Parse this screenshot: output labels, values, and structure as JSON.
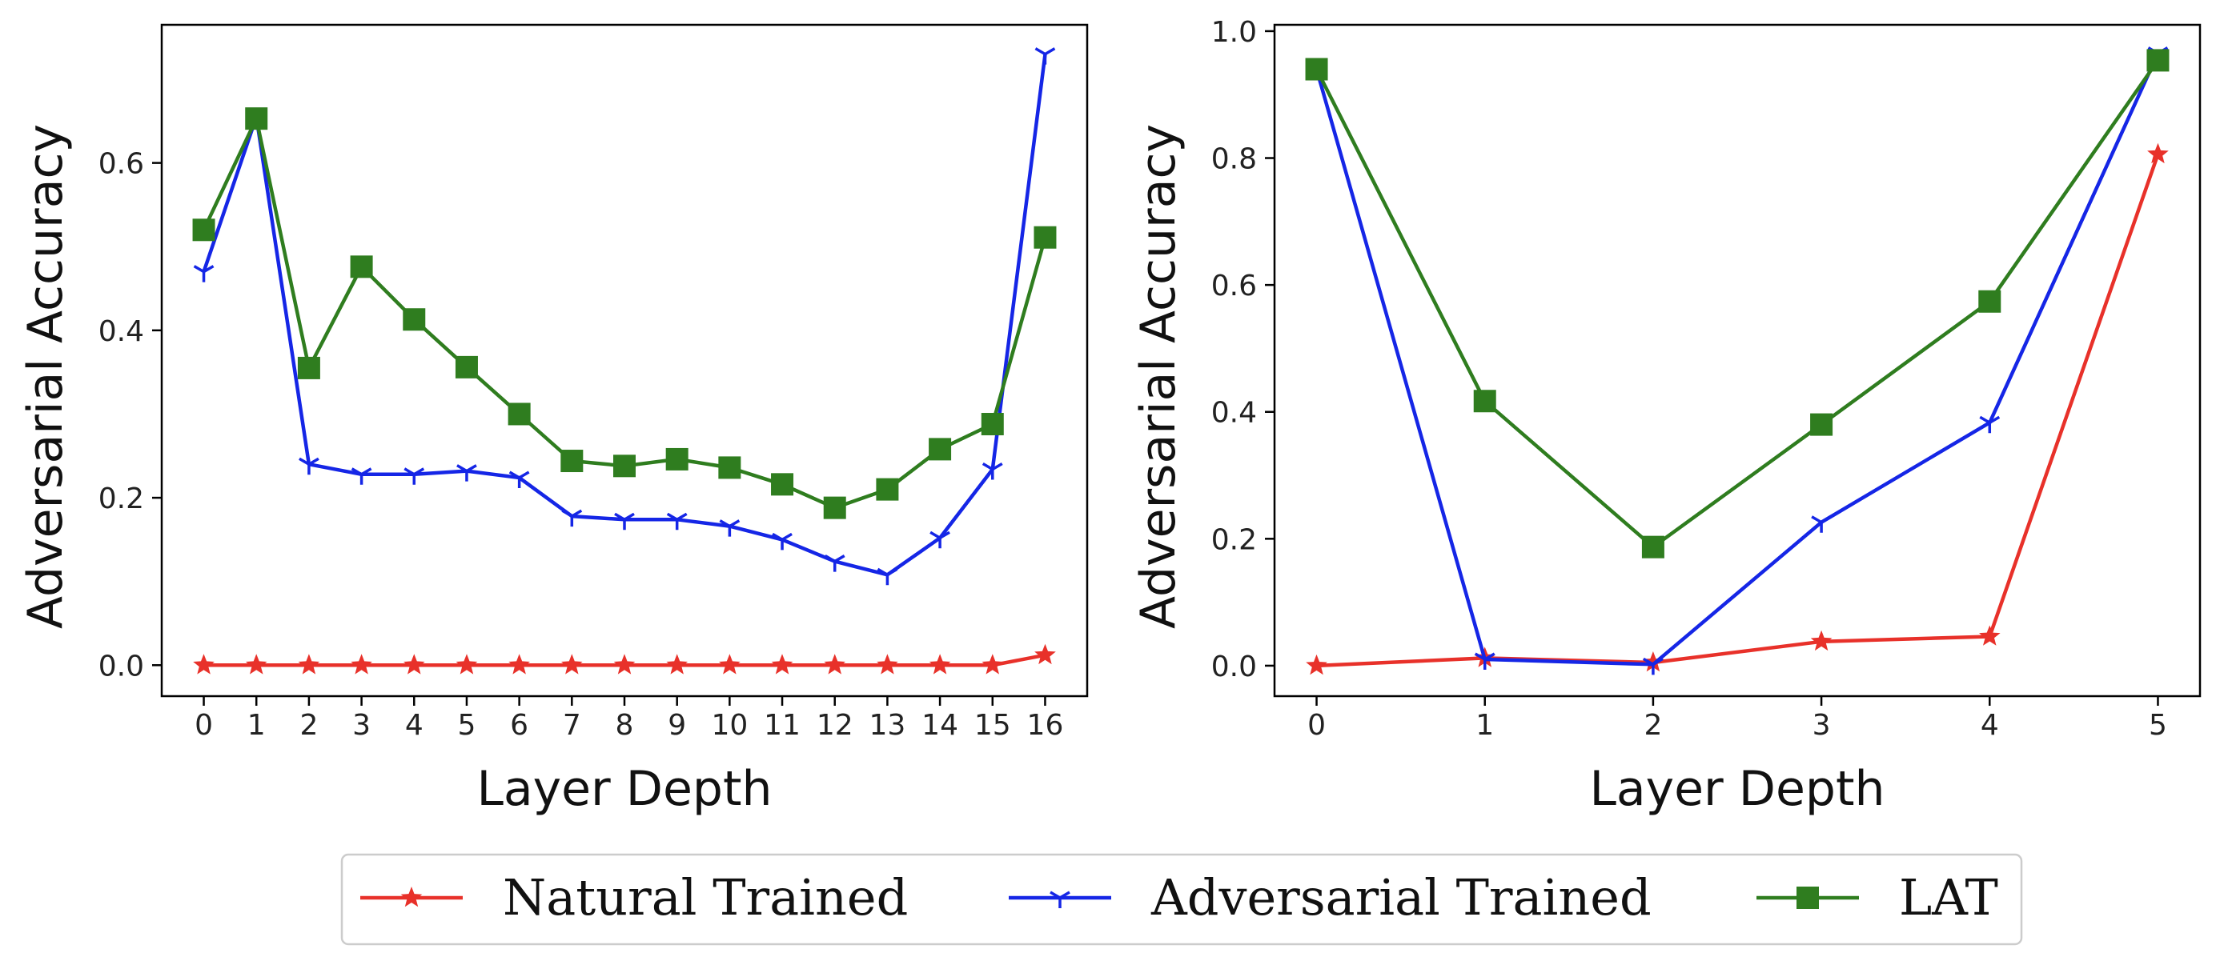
{
  "chart_data": [
    {
      "type": "line",
      "xlabel": "Layer Depth",
      "ylabel": "Adversarial Accuracy",
      "x": [
        0,
        1,
        2,
        3,
        4,
        5,
        6,
        7,
        8,
        9,
        10,
        11,
        12,
        13,
        14,
        15,
        16
      ],
      "xticks": [
        "0",
        "1",
        "2",
        "3",
        "4",
        "5",
        "6",
        "7",
        "8",
        "9",
        "10",
        "11",
        "12",
        "13",
        "14",
        "15",
        "16"
      ],
      "xlim": [
        -0.8,
        16.8
      ],
      "ylim": [
        -0.037,
        0.765
      ],
      "yticks": [
        "0.0",
        "0.2",
        "0.4",
        "0.6"
      ],
      "series": [
        {
          "name": "Natural Trained",
          "color": "#e8312a",
          "marker": "star",
          "values": [
            0.0,
            0.0,
            0.0,
            0.0,
            0.0,
            0.0,
            0.0,
            0.0,
            0.0,
            0.0,
            0.0,
            0.0,
            0.0,
            0.0,
            0.0,
            0.0,
            0.012
          ]
        },
        {
          "name": "Adversarial Trained",
          "color": "#1526e6",
          "marker": "tri",
          "values": [
            0.47,
            0.655,
            0.24,
            0.228,
            0.228,
            0.232,
            0.224,
            0.178,
            0.174,
            0.174,
            0.166,
            0.15,
            0.124,
            0.108,
            0.152,
            0.234,
            0.73
          ]
        },
        {
          "name": "LAT",
          "color": "#2f7d1f",
          "marker": "square",
          "values": [
            0.52,
            0.653,
            0.355,
            0.476,
            0.413,
            0.356,
            0.3,
            0.244,
            0.238,
            0.246,
            0.236,
            0.216,
            0.188,
            0.21,
            0.258,
            0.288,
            0.511
          ]
        }
      ]
    },
    {
      "type": "line",
      "xlabel": "Layer Depth",
      "ylabel": "Adversarial Accuracy",
      "x": [
        0,
        1,
        2,
        3,
        4,
        5
      ],
      "xticks": [
        "0",
        "1",
        "2",
        "3",
        "4",
        "5"
      ],
      "xlim": [
        -0.25,
        5.25
      ],
      "ylim": [
        -0.048,
        1.01
      ],
      "yticks": [
        "0.0",
        "0.2",
        "0.4",
        "0.6",
        "0.8",
        "1.0"
      ],
      "series": [
        {
          "name": "Natural Trained",
          "color": "#e8312a",
          "marker": "star",
          "values": [
            0.0,
            0.012,
            0.005,
            0.038,
            0.046,
            0.806
          ]
        },
        {
          "name": "Adversarial Trained",
          "color": "#1526e6",
          "marker": "tri",
          "values": [
            0.94,
            0.01,
            0.002,
            0.226,
            0.383,
            0.965
          ]
        },
        {
          "name": "LAT",
          "color": "#2f7d1f",
          "marker": "square",
          "values": [
            0.94,
            0.417,
            0.187,
            0.38,
            0.574,
            0.954
          ]
        }
      ]
    }
  ],
  "legend": {
    "placement": "bottom-center",
    "items": [
      "Natural Trained",
      "Adversarial Trained",
      "LAT"
    ]
  }
}
